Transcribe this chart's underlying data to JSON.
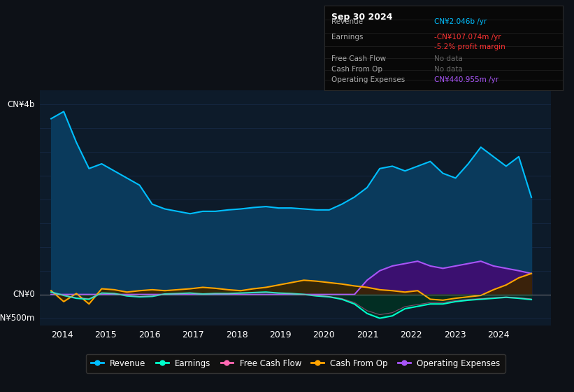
{
  "bg_color": "#0d1117",
  "plot_bg_color": "#0d1b2a",
  "info_title": "Sep 30 2024",
  "ylabel_top": "CN¥4b",
  "ylabel_zero": "CN¥0",
  "ylabel_neg": "-CN¥500m",
  "ylim": [
    -650,
    4300
  ],
  "xlim_start": 2013.5,
  "xlim_end": 2025.2,
  "xticks": [
    2014,
    2015,
    2016,
    2017,
    2018,
    2019,
    2020,
    2021,
    2022,
    2023,
    2024
  ],
  "revenue_color": "#00bfff",
  "revenue_fill": "#0a3a5c",
  "earnings_color": "#00ffcc",
  "earnings_fill_pos": "#003322",
  "earnings_fill_neg": "#003322",
  "cashflow_color": "#ff69b4",
  "cashfromop_color": "#ffa500",
  "cashfromop_fill": "#3a2500",
  "opex_color": "#a855f7",
  "opex_fill": "#3b1070",
  "grid_color": "#1a3050",
  "zero_line_color": "#888888",
  "info_box_bg": "#080808",
  "info_box_border": "#2a2a2a",
  "revenue_data": [
    3700,
    3850,
    3200,
    2650,
    2750,
    2600,
    2450,
    2300,
    1900,
    1800,
    1750,
    1700,
    1750,
    1750,
    1780,
    1800,
    1830,
    1850,
    1820,
    1820,
    1800,
    1780,
    1780,
    1900,
    2050,
    2250,
    2650,
    2700,
    2600,
    2700,
    2800,
    2550,
    2450,
    2750,
    3100,
    2900,
    2700,
    2900,
    2046
  ],
  "earnings_data": [
    50,
    -20,
    -80,
    -100,
    30,
    20,
    -30,
    -50,
    -40,
    10,
    20,
    30,
    10,
    20,
    20,
    30,
    40,
    50,
    30,
    20,
    0,
    -30,
    -50,
    -100,
    -200,
    -400,
    -500,
    -450,
    -300,
    -250,
    -200,
    -200,
    -150,
    -120,
    -100,
    -80,
    -60,
    -80,
    -107
  ],
  "cashfromop_data": [
    80,
    -150,
    20,
    -200,
    120,
    100,
    50,
    80,
    100,
    80,
    100,
    120,
    150,
    130,
    100,
    80,
    120,
    150,
    200,
    250,
    300,
    280,
    250,
    220,
    180,
    150,
    100,
    80,
    50,
    80,
    -100,
    -120,
    -80,
    -50,
    -20,
    100,
    200,
    350,
    441
  ],
  "opex_data": [
    0,
    0,
    0,
    0,
    0,
    0,
    0,
    0,
    0,
    0,
    0,
    0,
    0,
    0,
    0,
    0,
    0,
    0,
    0,
    0,
    0,
    0,
    0,
    0,
    0,
    300,
    500,
    600,
    650,
    700,
    600,
    550,
    600,
    650,
    700,
    600,
    550,
    500,
    441
  ],
  "n_points": 39,
  "x_start": 2013.75,
  "x_end": 2024.75,
  "legend_labels": [
    "Revenue",
    "Earnings",
    "Free Cash Flow",
    "Cash From Op",
    "Operating Expenses"
  ],
  "legend_colors": [
    "#00bfff",
    "#00ffcc",
    "#ff69b4",
    "#ffa500",
    "#a855f7"
  ]
}
